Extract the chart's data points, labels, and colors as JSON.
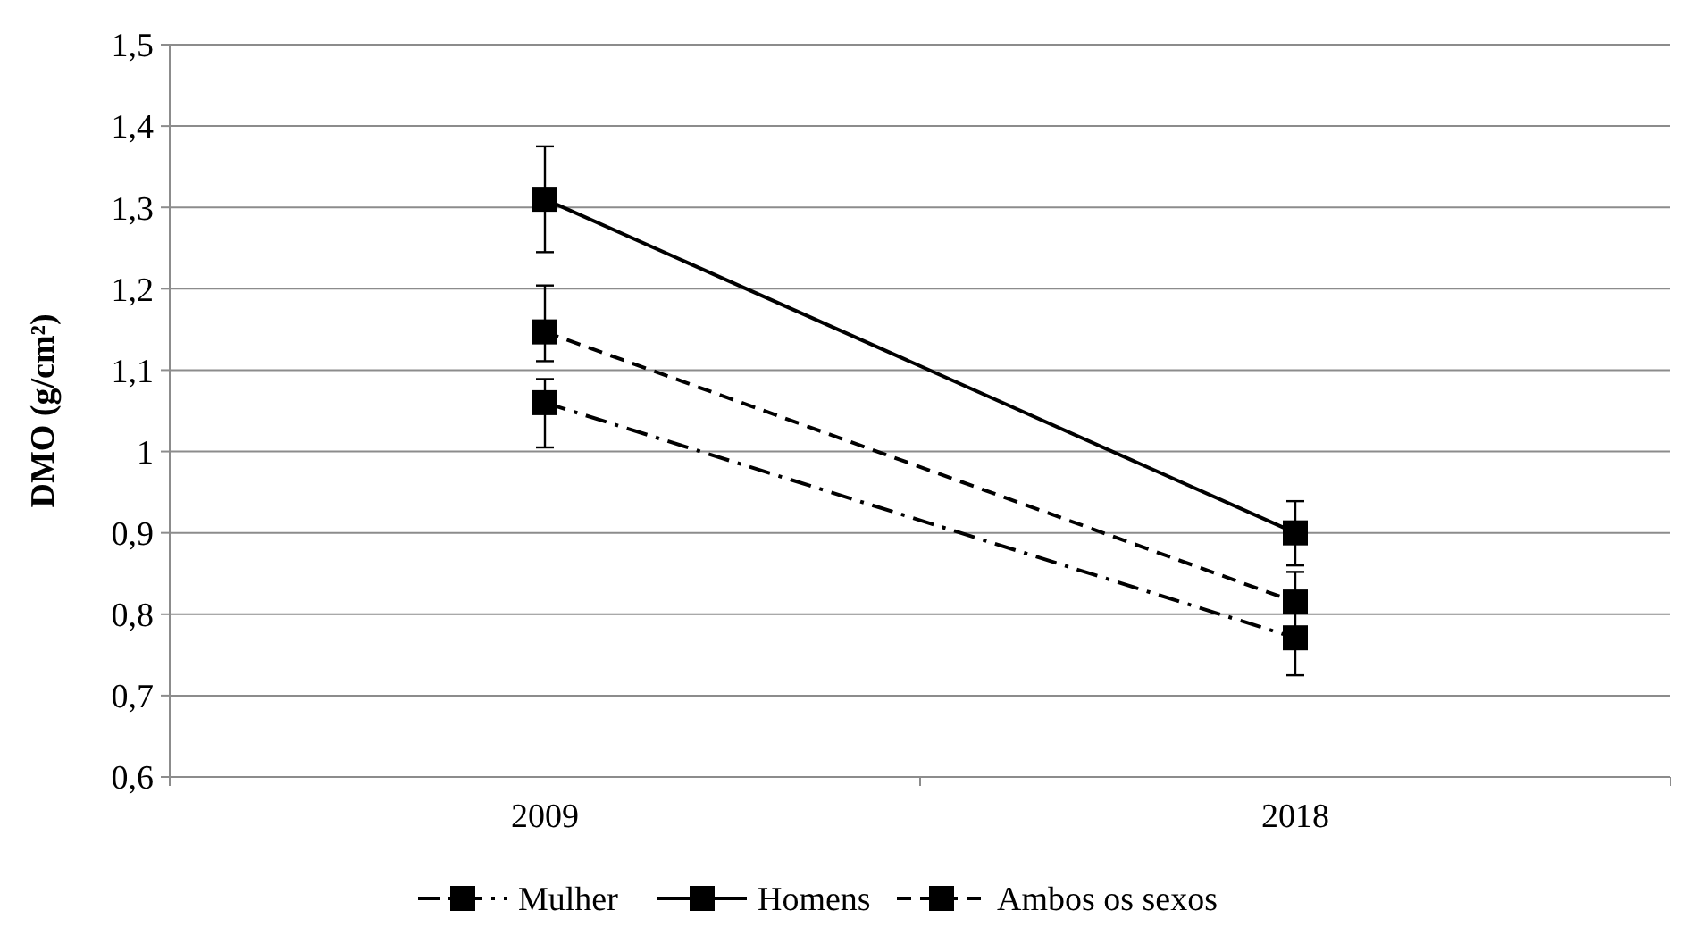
{
  "chart_data": {
    "type": "line",
    "ylabel": "DMO (g/cm²)",
    "categories": [
      "2009",
      "2018"
    ],
    "ylim": [
      0.6,
      1.5
    ],
    "yticks": [
      {
        "value": 0.6,
        "label": "0,6"
      },
      {
        "value": 0.7,
        "label": "0,7"
      },
      {
        "value": 0.8,
        "label": "0,8"
      },
      {
        "value": 0.9,
        "label": "0,9"
      },
      {
        "value": 1,
        "label": "1"
      },
      {
        "value": 1.1,
        "label": "1,1"
      },
      {
        "value": 1.2,
        "label": "1,2"
      },
      {
        "value": 1.3,
        "label": "1,3"
      },
      {
        "value": 1.4,
        "label": "1,4"
      },
      {
        "value": 1.5,
        "label": "1,5"
      }
    ],
    "grid": "y",
    "legend": "bottom",
    "marker": "square",
    "series": [
      {
        "name": "Mulher",
        "color": "#000000",
        "line_style": "dashdot",
        "values": [
          1.06,
          0.771
        ],
        "errors": [
          [
            1.005,
            1.089
          ],
          [
            0.725,
            0.771
          ]
        ]
      },
      {
        "name": "Homens",
        "color": "#000000",
        "line_style": "solid",
        "values": [
          1.31,
          0.9
        ],
        "errors": [
          [
            1.245,
            1.375
          ],
          [
            0.86,
            0.939
          ]
        ]
      },
      {
        "name": "Ambos os sexos",
        "color": "#000000",
        "line_style": "dashed",
        "values": [
          1.147,
          0.815
        ],
        "errors": [
          [
            1.111,
            1.204
          ],
          [
            0.78,
            0.852
          ]
        ]
      }
    ]
  }
}
